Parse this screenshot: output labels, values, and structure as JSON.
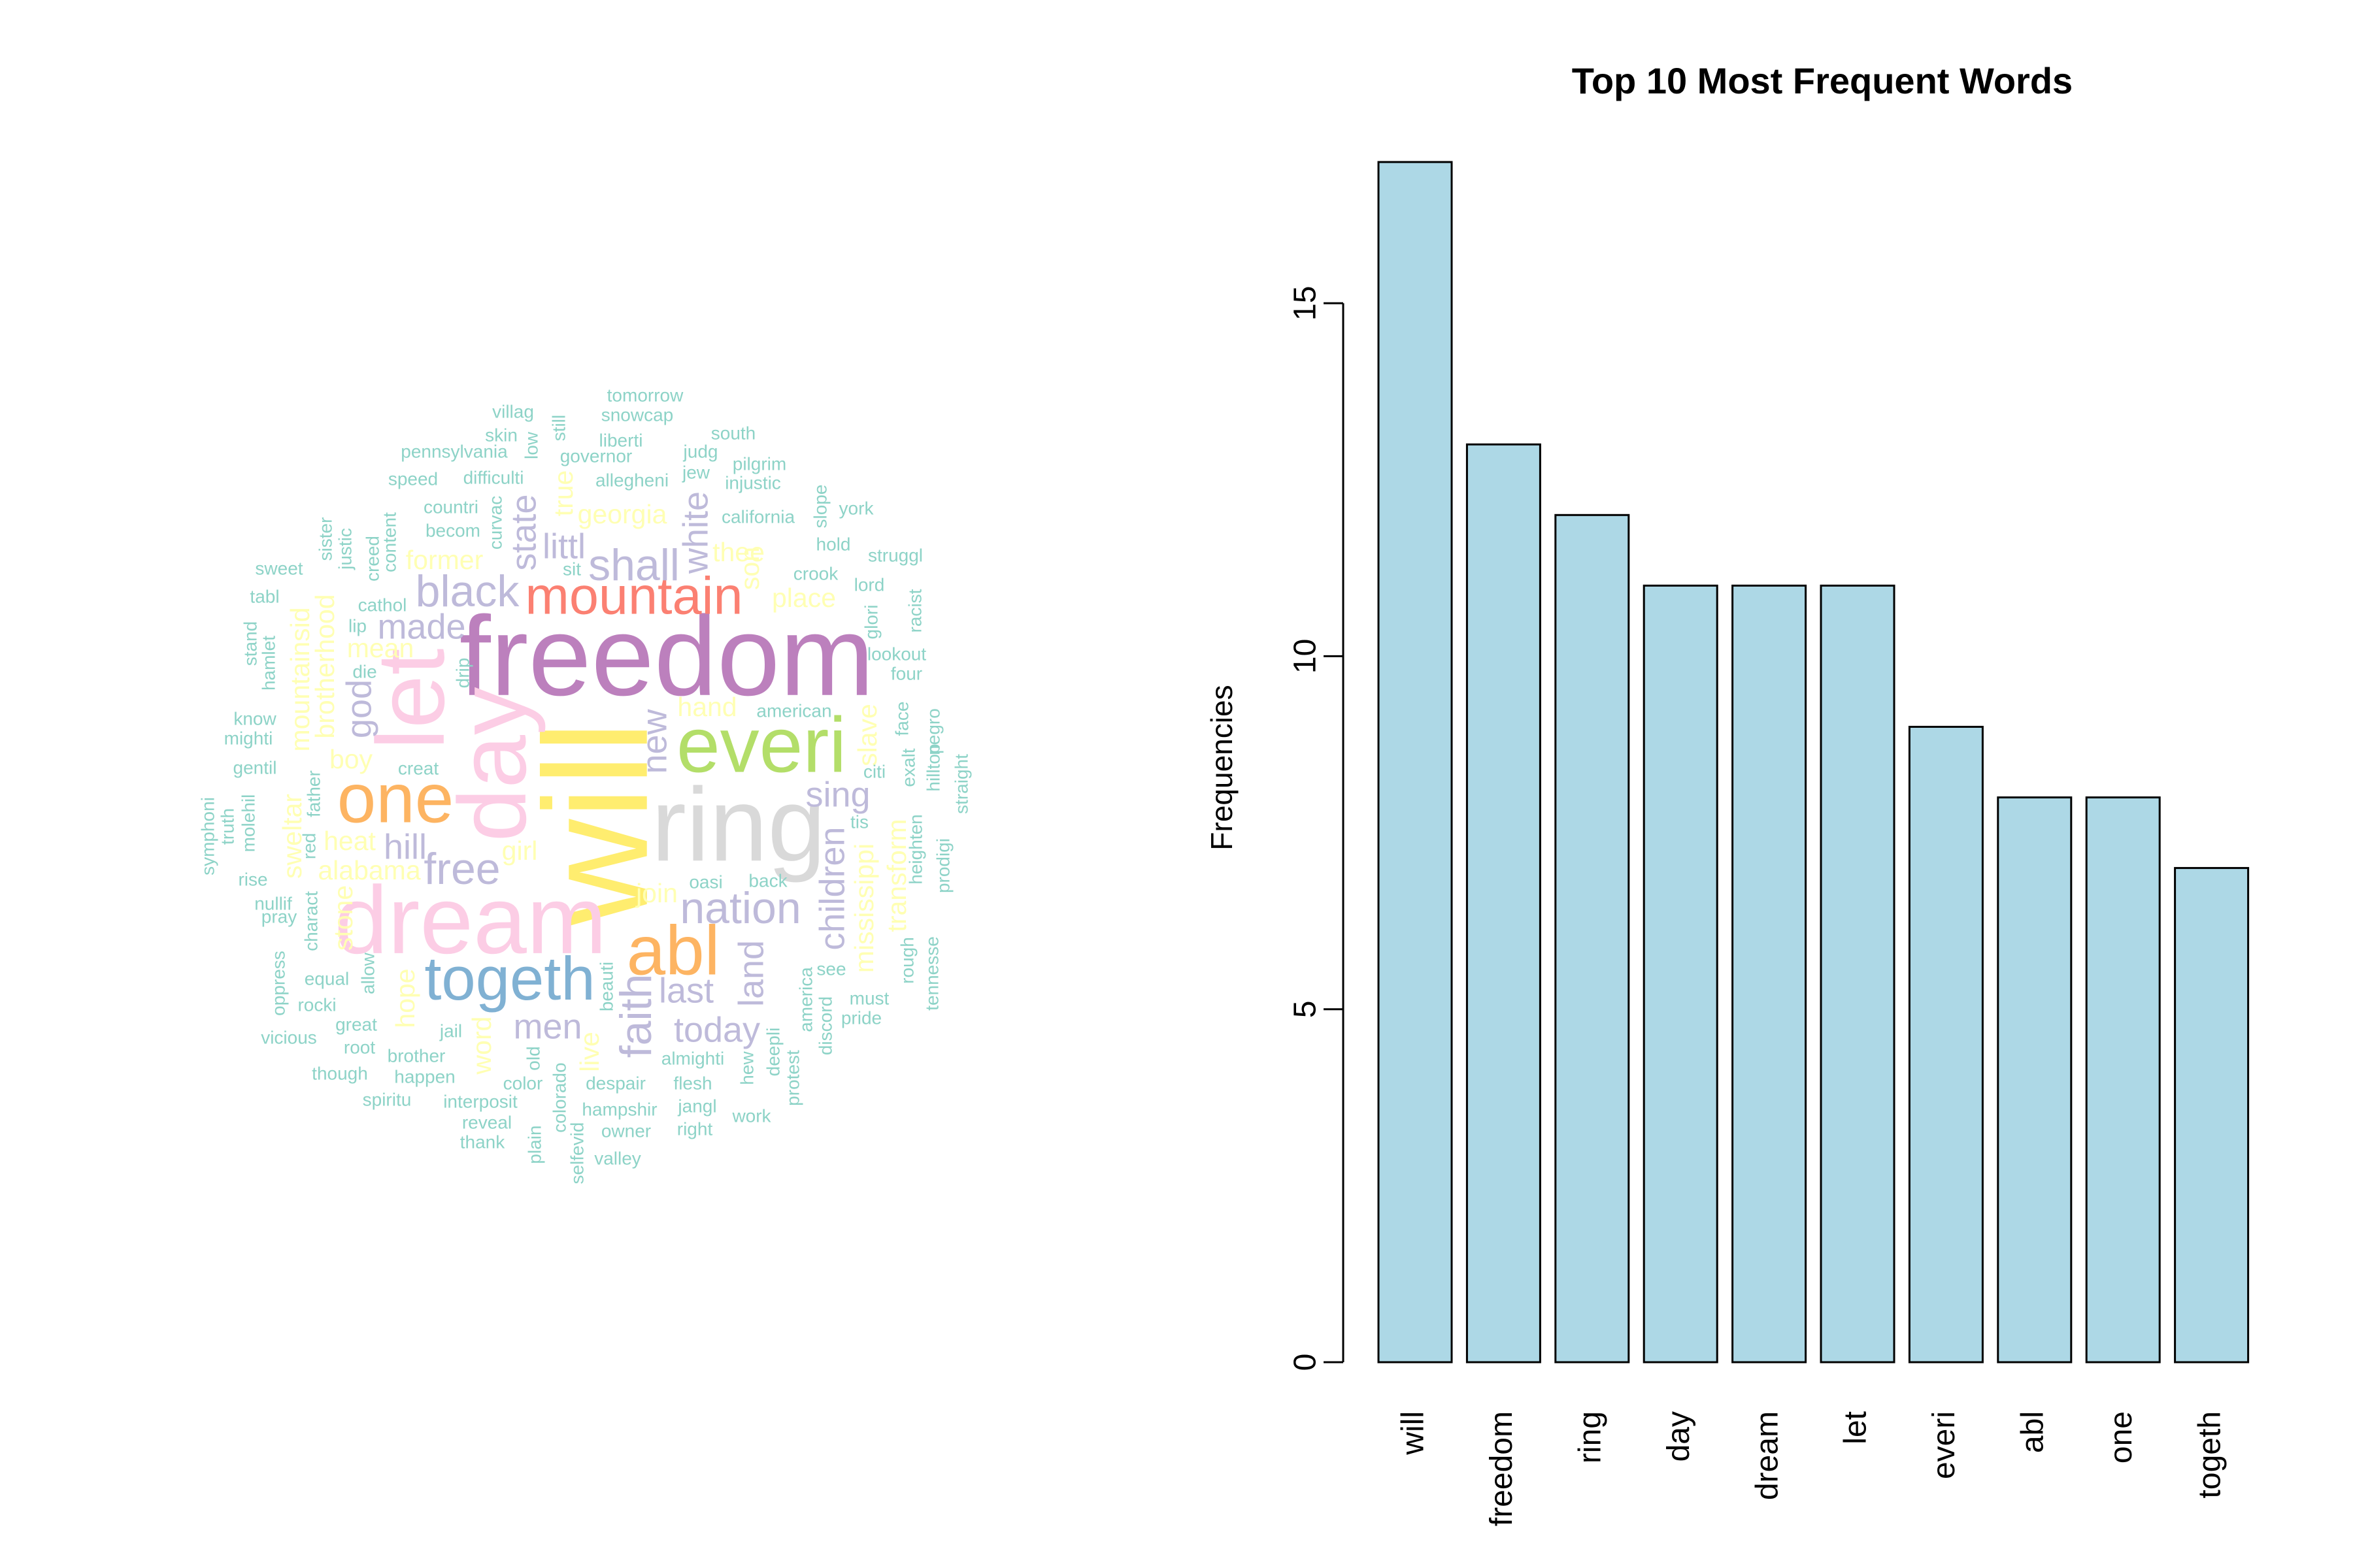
{
  "chart_data": [
    {
      "type": "wordcloud",
      "palette": [
        "#8DD3C7",
        "#FFFFB3",
        "#BEBADA",
        "#FB8072",
        "#80B1D3",
        "#FDB462",
        "#B3DE69",
        "#FCCDE5",
        "#D9D9D9",
        "#BC80BD",
        "#CCEBC5",
        "#FFED6F"
      ],
      "words": [
        {
          "text": "will",
          "freq": 17
        },
        {
          "text": "freedom",
          "freq": 13
        },
        {
          "text": "ring",
          "freq": 12
        },
        {
          "text": "day",
          "freq": 11
        },
        {
          "text": "dream",
          "freq": 11
        },
        {
          "text": "let",
          "freq": 11
        },
        {
          "text": "everi",
          "freq": 9
        },
        {
          "text": "abl",
          "freq": 8
        },
        {
          "text": "one",
          "freq": 8
        },
        {
          "text": "togeth",
          "freq": 7
        },
        {
          "text": "mountain",
          "freq": 6
        },
        {
          "text": "shall",
          "freq": 5
        },
        {
          "text": "faith",
          "freq": 5
        },
        {
          "text": "nation",
          "freq": 5
        },
        {
          "text": "black",
          "freq": 5
        },
        {
          "text": "free",
          "freq": 5
        },
        {
          "text": "made",
          "freq": 4
        },
        {
          "text": "children",
          "freq": 4
        },
        {
          "text": "state",
          "freq": 4
        },
        {
          "text": "white",
          "freq": 4
        },
        {
          "text": "today",
          "freq": 4
        },
        {
          "text": "land",
          "freq": 4
        },
        {
          "text": "last",
          "freq": 4
        },
        {
          "text": "men",
          "freq": 4
        },
        {
          "text": "hill",
          "freq": 4
        },
        {
          "text": "god",
          "freq": 4
        },
        {
          "text": "sing",
          "freq": 4
        },
        {
          "text": "littl",
          "freq": 4
        },
        {
          "text": "new",
          "freq": 4
        },
        {
          "text": "georgia",
          "freq": 3
        },
        {
          "text": "former",
          "freq": 3
        },
        {
          "text": "mean",
          "freq": 3
        },
        {
          "text": "place",
          "freq": 3
        },
        {
          "text": "thee",
          "freq": 3
        },
        {
          "text": "hand",
          "freq": 3
        },
        {
          "text": "boy",
          "freq": 3
        },
        {
          "text": "heat",
          "freq": 3
        },
        {
          "text": "alabama",
          "freq": 3
        },
        {
          "text": "stone",
          "freq": 3
        },
        {
          "text": "hope",
          "freq": 3
        },
        {
          "text": "join",
          "freq": 3
        },
        {
          "text": "girl",
          "freq": 3
        },
        {
          "text": "true",
          "freq": 3
        },
        {
          "text": "live",
          "freq": 3
        },
        {
          "text": "word",
          "freq": 3
        },
        {
          "text": "brotherhood",
          "freq": 3
        },
        {
          "text": "mountainsid",
          "freq": 3
        },
        {
          "text": "mississippi",
          "freq": 3
        },
        {
          "text": "transform",
          "freq": 3
        },
        {
          "text": "slave",
          "freq": 3
        },
        {
          "text": "sweltar",
          "freq": 3
        },
        {
          "text": "son",
          "freq": 3
        },
        {
          "text": "oasi",
          "freq": 2
        },
        {
          "text": "back",
          "freq": 2
        },
        {
          "text": "american",
          "freq": 2
        },
        {
          "text": "creat",
          "freq": 2
        },
        {
          "text": "sit",
          "freq": 2
        },
        {
          "text": "drip",
          "freq": 2
        },
        {
          "text": "tomorrow",
          "freq": 2
        },
        {
          "text": "snowcap",
          "freq": 2
        },
        {
          "text": "villag",
          "freq": 2
        },
        {
          "text": "skin",
          "freq": 2
        },
        {
          "text": "low",
          "freq": 2
        },
        {
          "text": "still",
          "freq": 2
        },
        {
          "text": "liberti",
          "freq": 2
        },
        {
          "text": "south",
          "freq": 2
        },
        {
          "text": "pennsylvania",
          "freq": 2
        },
        {
          "text": "governor",
          "freq": 2
        },
        {
          "text": "judg",
          "freq": 2
        },
        {
          "text": "pilgrim",
          "freq": 2
        },
        {
          "text": "speed",
          "freq": 2
        },
        {
          "text": "difficulti",
          "freq": 2
        },
        {
          "text": "allegheni",
          "freq": 2
        },
        {
          "text": "jew",
          "freq": 2
        },
        {
          "text": "injustic",
          "freq": 2
        },
        {
          "text": "slope",
          "freq": 2
        },
        {
          "text": "york",
          "freq": 2
        },
        {
          "text": "countri",
          "freq": 2
        },
        {
          "text": "curvac",
          "freq": 2
        },
        {
          "text": "california",
          "freq": 2
        },
        {
          "text": "becom",
          "freq": 2
        },
        {
          "text": "sister",
          "freq": 2
        },
        {
          "text": "justic",
          "freq": 2
        },
        {
          "text": "creed",
          "freq": 2
        },
        {
          "text": "content",
          "freq": 2
        },
        {
          "text": "hold",
          "freq": 2
        },
        {
          "text": "struggl",
          "freq": 2
        },
        {
          "text": "sweet",
          "freq": 2
        },
        {
          "text": "crook",
          "freq": 2
        },
        {
          "text": "lord",
          "freq": 2
        },
        {
          "text": "tabl",
          "freq": 2
        },
        {
          "text": "cathol",
          "freq": 2
        },
        {
          "text": "glori",
          "freq": 2
        },
        {
          "text": "racist",
          "freq": 2
        },
        {
          "text": "lip",
          "freq": 2
        },
        {
          "text": "stand",
          "freq": 2
        },
        {
          "text": "hamlet",
          "freq": 2
        },
        {
          "text": "lookout",
          "freq": 2
        },
        {
          "text": "die",
          "freq": 2
        },
        {
          "text": "four",
          "freq": 2
        },
        {
          "text": "know",
          "freq": 2
        },
        {
          "text": "mighti",
          "freq": 2
        },
        {
          "text": "face",
          "freq": 2
        },
        {
          "text": "negro",
          "freq": 2
        },
        {
          "text": "gentil",
          "freq": 2
        },
        {
          "text": "exalt",
          "freq": 2
        },
        {
          "text": "citi",
          "freq": 2
        },
        {
          "text": "hilltop",
          "freq": 2
        },
        {
          "text": "straight",
          "freq": 2
        },
        {
          "text": "father",
          "freq": 2
        },
        {
          "text": "symphoni",
          "freq": 2
        },
        {
          "text": "truth",
          "freq": 2
        },
        {
          "text": "molehil",
          "freq": 2
        },
        {
          "text": "red",
          "freq": 2
        },
        {
          "text": "tis",
          "freq": 2
        },
        {
          "text": "heighten",
          "freq": 2
        },
        {
          "text": "prodigi",
          "freq": 2
        },
        {
          "text": "rise",
          "freq": 2
        },
        {
          "text": "nullif",
          "freq": 2
        },
        {
          "text": "pray",
          "freq": 2
        },
        {
          "text": "charact",
          "freq": 2
        },
        {
          "text": "rough",
          "freq": 2
        },
        {
          "text": "tennesse",
          "freq": 2
        },
        {
          "text": "oppress",
          "freq": 2
        },
        {
          "text": "equal",
          "freq": 2
        },
        {
          "text": "allow",
          "freq": 2
        },
        {
          "text": "beauti",
          "freq": 2
        },
        {
          "text": "see",
          "freq": 2
        },
        {
          "text": "must",
          "freq": 2
        },
        {
          "text": "pride",
          "freq": 2
        },
        {
          "text": "rocki",
          "freq": 2
        },
        {
          "text": "great",
          "freq": 2
        },
        {
          "text": "america",
          "freq": 2
        },
        {
          "text": "discord",
          "freq": 2
        },
        {
          "text": "jail",
          "freq": 2
        },
        {
          "text": "vicious",
          "freq": 2
        },
        {
          "text": "root",
          "freq": 2
        },
        {
          "text": "old",
          "freq": 2
        },
        {
          "text": "almighti",
          "freq": 2
        },
        {
          "text": "hew",
          "freq": 2
        },
        {
          "text": "deepli",
          "freq": 2
        },
        {
          "text": "protest",
          "freq": 2
        },
        {
          "text": "brother",
          "freq": 2
        },
        {
          "text": "though",
          "freq": 2
        },
        {
          "text": "happen",
          "freq": 2
        },
        {
          "text": "despair",
          "freq": 2
        },
        {
          "text": "flesh",
          "freq": 2
        },
        {
          "text": "color",
          "freq": 2
        },
        {
          "text": "spiritu",
          "freq": 2
        },
        {
          "text": "interposit",
          "freq": 2
        },
        {
          "text": "colorado",
          "freq": 2
        },
        {
          "text": "hampshir",
          "freq": 2
        },
        {
          "text": "jangl",
          "freq": 2
        },
        {
          "text": "reveal",
          "freq": 2
        },
        {
          "text": "owner",
          "freq": 2
        },
        {
          "text": "right",
          "freq": 2
        },
        {
          "text": "work",
          "freq": 2
        },
        {
          "text": "thank",
          "freq": 2
        },
        {
          "text": "plain",
          "freq": 2
        },
        {
          "text": "valley",
          "freq": 2
        },
        {
          "text": "selfevid",
          "freq": 2
        }
      ]
    },
    {
      "type": "bar",
      "title": "Top 10 Most Frequent Words",
      "xlabel": "",
      "ylabel": "Frequencies",
      "categories": [
        "will",
        "freedom",
        "ring",
        "day",
        "dream",
        "let",
        "everi",
        "abl",
        "one",
        "togeth"
      ],
      "values": [
        17,
        13,
        12,
        11,
        11,
        11,
        9,
        8,
        8,
        7
      ],
      "ylim": [
        0,
        17
      ],
      "yticks": [
        0,
        5,
        10,
        15
      ],
      "bar_color": "#ADD8E6",
      "border_color": "#000000",
      "grid": false,
      "legend": "none"
    }
  ]
}
